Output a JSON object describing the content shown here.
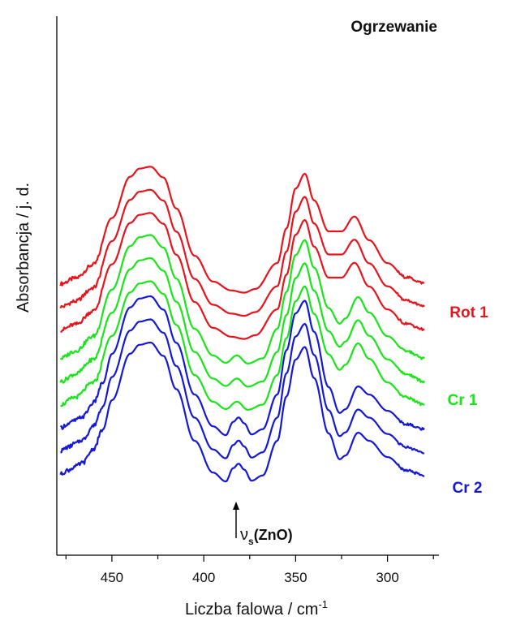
{
  "chart_data": {
    "type": "line",
    "title": "Ogrzewanie",
    "xlabel": "Liczba falowa / cm",
    "xlabel_sup": "-1",
    "ylabel": "Absorbancja / j. d.",
    "xlim": [
      480,
      272
    ],
    "x_reversed": true,
    "y_ticks_shown": false,
    "x_ticks": [
      450,
      400,
      350,
      300
    ],
    "x_tick_labels": [
      "450",
      "400",
      "350",
      "300"
    ],
    "groups": [
      {
        "label": "Rot 1",
        "color": "#e8141c"
      },
      {
        "label": "Cr 1",
        "color": "#19e619"
      },
      {
        "label": "Cr 2",
        "color": "#1418d8"
      }
    ],
    "series": [
      {
        "group": "Rot 1",
        "color": "#e8141c",
        "x": [
          478,
          470,
          460,
          450,
          440,
          435,
          429,
          422,
          415,
          405,
          395,
          385,
          378,
          372,
          360,
          355,
          350,
          345,
          340,
          332,
          325,
          318,
          310,
          300,
          290,
          280
        ],
        "y": [
          0.7,
          1.45,
          3.3,
          9.6,
          15.2,
          16.3,
          16.55,
          15.1,
          10.9,
          4.5,
          1.0,
          -0.2,
          -0.5,
          0.0,
          3.5,
          8.2,
          13.6,
          15.6,
          12.0,
          7.8,
          7.8,
          9.8,
          6.6,
          3.5,
          1.6,
          0.8
        ]
      },
      {
        "group": "Rot 1",
        "color": "#e8141c",
        "x": [
          478,
          470,
          460,
          450,
          440,
          435,
          429,
          422,
          415,
          405,
          395,
          385,
          378,
          372,
          360,
          355,
          350,
          345,
          340,
          332,
          325,
          318,
          310,
          300,
          290,
          280
        ],
        "y": [
          0.7,
          1.45,
          3.3,
          9.6,
          15.2,
          16.3,
          16.55,
          15.1,
          10.9,
          4.5,
          1.0,
          -0.2,
          -0.5,
          0.0,
          3.5,
          8.2,
          13.6,
          15.6,
          12.0,
          7.8,
          7.8,
          9.8,
          6.6,
          3.5,
          1.6,
          0.8
        ]
      },
      {
        "group": "Rot 1",
        "color": "#e8141c",
        "x": [
          478,
          470,
          460,
          450,
          440,
          435,
          429,
          422,
          415,
          405,
          395,
          385,
          378,
          372,
          360,
          355,
          350,
          345,
          340,
          332,
          325,
          318,
          310,
          300,
          290,
          280
        ],
        "y": [
          0.7,
          1.45,
          3.3,
          9.6,
          15.2,
          16.3,
          16.55,
          15.1,
          10.9,
          4.5,
          1.0,
          -0.2,
          -0.5,
          0.0,
          3.5,
          8.2,
          13.6,
          15.6,
          12.0,
          7.8,
          7.8,
          9.8,
          6.6,
          3.5,
          1.6,
          0.8
        ]
      },
      {
        "group": "Cr 1",
        "color": "#19e619",
        "x": [
          478,
          470,
          460,
          450,
          440,
          435,
          429,
          422,
          415,
          405,
          395,
          388,
          382,
          376,
          368,
          360,
          355,
          350,
          345,
          340,
          332,
          326,
          323,
          316,
          310,
          300,
          290,
          280
        ],
        "y": [
          0.0,
          1.0,
          3.0,
          9.3,
          15.2,
          16.4,
          16.7,
          15.0,
          10.8,
          4.0,
          0.4,
          -0.6,
          0.4,
          -0.7,
          0.0,
          4.0,
          9.0,
          14.0,
          16.0,
          12.3,
          6.8,
          4.7,
          5.4,
          8.3,
          6.2,
          3.0,
          1.0,
          0.0
        ]
      },
      {
        "group": "Cr 1",
        "color": "#19e619",
        "x": [
          478,
          470,
          460,
          450,
          440,
          435,
          429,
          422,
          415,
          405,
          395,
          388,
          382,
          376,
          368,
          360,
          355,
          350,
          345,
          340,
          332,
          326,
          323,
          316,
          310,
          300,
          290,
          280
        ],
        "y": [
          0.0,
          1.0,
          3.0,
          9.3,
          15.2,
          16.4,
          16.7,
          15.0,
          10.8,
          4.0,
          0.4,
          -0.6,
          0.4,
          -0.7,
          0.0,
          4.0,
          9.0,
          14.0,
          16.0,
          12.3,
          6.8,
          4.7,
          5.4,
          8.3,
          6.2,
          3.0,
          1.0,
          0.0
        ]
      },
      {
        "group": "Cr 1",
        "color": "#19e619",
        "x": [
          478,
          470,
          460,
          450,
          440,
          435,
          429,
          422,
          415,
          405,
          395,
          388,
          382,
          376,
          368,
          360,
          355,
          350,
          345,
          340,
          332,
          326,
          323,
          316,
          310,
          300,
          290,
          280
        ],
        "y": [
          0.0,
          1.0,
          3.0,
          9.3,
          15.2,
          16.4,
          16.7,
          15.0,
          10.8,
          4.0,
          0.4,
          -0.6,
          0.4,
          -0.7,
          0.0,
          4.0,
          9.0,
          14.0,
          16.0,
          12.3,
          6.8,
          4.7,
          5.4,
          8.3,
          6.2,
          3.0,
          1.0,
          0.0
        ]
      },
      {
        "group": "Cr 2",
        "color": "#1418d8",
        "x": [
          478,
          474,
          470,
          466,
          460,
          455,
          450,
          440,
          435,
          429,
          422,
          415,
          405,
          395,
          388,
          384,
          381,
          378,
          374,
          368,
          360,
          355,
          350,
          345,
          340,
          332,
          326,
          323,
          316,
          310,
          300,
          290,
          280
        ],
        "y": [
          0.0,
          0.5,
          1.0,
          1.5,
          3.4,
          6.0,
          10.0,
          16.3,
          17.5,
          17.8,
          16.0,
          11.5,
          4.5,
          0.2,
          -1.0,
          0.8,
          1.4,
          0.6,
          -0.9,
          -0.2,
          4.5,
          10.5,
          15.5,
          17.2,
          13.0,
          5.5,
          2.0,
          2.5,
          5.6,
          4.5,
          2.3,
          0.5,
          -0.2
        ]
      },
      {
        "group": "Cr 2",
        "color": "#1418d8",
        "x": [
          478,
          474,
          470,
          466,
          460,
          455,
          450,
          440,
          435,
          429,
          422,
          415,
          405,
          395,
          388,
          384,
          381,
          378,
          374,
          368,
          360,
          355,
          350,
          345,
          340,
          332,
          326,
          323,
          316,
          310,
          300,
          290,
          280
        ],
        "y": [
          0.0,
          0.5,
          1.0,
          1.5,
          3.4,
          6.0,
          10.0,
          16.3,
          17.5,
          17.8,
          16.0,
          11.5,
          4.5,
          0.2,
          -1.0,
          0.8,
          1.4,
          0.6,
          -0.9,
          -0.2,
          4.5,
          10.5,
          15.5,
          17.2,
          13.0,
          5.5,
          2.0,
          2.5,
          5.6,
          4.5,
          2.3,
          0.5,
          -0.2
        ]
      },
      {
        "group": "Cr 2",
        "color": "#1418d8",
        "x": [
          478,
          474,
          470,
          466,
          460,
          455,
          450,
          440,
          435,
          429,
          422,
          415,
          405,
          395,
          388,
          384,
          381,
          378,
          374,
          368,
          360,
          355,
          350,
          345,
          340,
          332,
          326,
          323,
          316,
          310,
          300,
          290,
          280
        ],
        "y": [
          0.0,
          0.5,
          1.0,
          1.5,
          3.4,
          6.0,
          10.0,
          16.3,
          17.5,
          17.8,
          16.0,
          11.5,
          4.5,
          0.2,
          -1.0,
          0.8,
          1.4,
          0.6,
          -0.9,
          -0.2,
          4.5,
          10.5,
          15.5,
          17.2,
          13.0,
          5.5,
          2.0,
          2.5,
          5.6,
          4.5,
          2.3,
          0.5,
          -0.2
        ]
      }
    ],
    "annotation": {
      "nu": "ν",
      "sub": "s",
      "text": "(ZnO)",
      "x": 381
    }
  }
}
